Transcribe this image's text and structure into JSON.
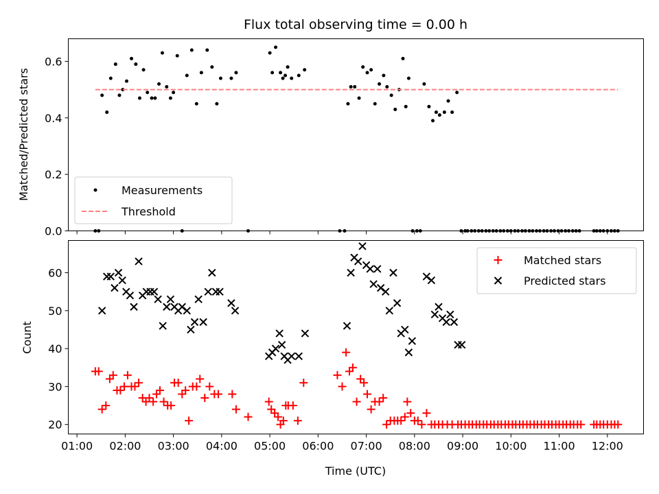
{
  "chart_data": [
    {
      "type": "scatter",
      "title": "Flux total observing time = 0.00 h",
      "xlabel": "",
      "ylabel": "Matched/Predicted stars",
      "xlim": [
        0.82,
        12.75
      ],
      "ylim": [
        0.0,
        0.68
      ],
      "yticks": [
        0.0,
        0.2,
        0.4,
        0.6
      ],
      "ytick_labels": [
        "0.0",
        "0.2",
        "0.4",
        "0.6"
      ],
      "legend_position": "bottom-left",
      "series": [
        {
          "name": "Measurements",
          "kind": "scatter",
          "color": "#000000",
          "x": [
            1.38,
            1.45,
            1.52,
            1.62,
            1.7,
            1.8,
            1.88,
            1.95,
            2.03,
            2.13,
            2.22,
            2.3,
            2.38,
            2.46,
            2.55,
            2.62,
            2.7,
            2.77,
            2.86,
            2.94,
            3.0,
            3.08,
            3.18,
            3.28,
            3.38,
            3.48,
            3.58,
            3.7,
            3.8,
            3.9,
            3.98,
            4.2,
            4.3,
            4.55,
            5.0,
            5.05,
            5.12,
            5.22,
            5.27,
            5.32,
            5.37,
            5.45,
            5.6,
            5.72,
            6.45,
            6.55,
            6.62,
            6.68,
            6.76,
            6.85,
            6.93,
            7.02,
            7.1,
            7.18,
            7.27,
            7.36,
            7.43,
            7.52,
            7.6,
            7.68,
            7.76,
            7.82,
            7.88,
            7.96,
            8.05,
            8.12,
            8.2,
            8.3,
            8.38,
            8.45,
            8.52,
            8.62,
            8.7,
            8.78,
            8.88,
            8.97,
            9.05,
            9.1,
            9.18,
            9.25,
            9.33,
            9.4,
            9.48,
            9.55,
            9.63,
            9.7,
            9.78,
            9.85,
            9.93,
            10.0,
            10.08,
            10.15,
            10.23,
            10.3,
            10.38,
            10.45,
            10.53,
            10.6,
            10.68,
            10.75,
            10.83,
            10.9,
            10.98,
            11.05,
            11.13,
            11.2,
            11.28,
            11.35,
            11.42,
            11.72,
            11.78,
            11.85,
            11.92,
            12.0,
            12.08,
            12.15,
            12.22
          ],
          "y": [
            0.0,
            0.0,
            0.48,
            0.42,
            0.54,
            0.59,
            0.48,
            0.5,
            0.53,
            0.61,
            0.59,
            0.47,
            0.57,
            0.49,
            0.47,
            0.47,
            0.52,
            0.63,
            0.51,
            0.47,
            0.49,
            0.62,
            0.0,
            0.55,
            0.64,
            0.45,
            0.56,
            0.64,
            0.58,
            0.45,
            0.54,
            0.54,
            0.56,
            0.0,
            0.63,
            0.56,
            0.65,
            0.56,
            0.54,
            0.55,
            0.58,
            0.54,
            0.55,
            0.57,
            0.0,
            0.0,
            0.45,
            0.51,
            0.51,
            0.47,
            0.58,
            0.56,
            0.57,
            0.45,
            0.52,
            0.55,
            0.51,
            0.48,
            0.43,
            0.5,
            0.61,
            0.44,
            0.54,
            0.0,
            0.0,
            0.0,
            0.52,
            0.44,
            0.39,
            0.42,
            0.41,
            0.42,
            0.46,
            0.42,
            0.49,
            0.0,
            0.0,
            0.0,
            0.0,
            0.0,
            0.0,
            0.0,
            0.0,
            0.0,
            0.0,
            0.0,
            0.0,
            0.0,
            0.0,
            0.0,
            0.0,
            0.0,
            0.0,
            0.0,
            0.0,
            0.0,
            0.0,
            0.0,
            0.0,
            0.0,
            0.0,
            0.0,
            0.0,
            0.0,
            0.0,
            0.0,
            0.0,
            0.0,
            0.0,
            0.0,
            0.0,
            0.0,
            0.0,
            0.0,
            0.0,
            0.0,
            0.0
          ]
        },
        {
          "name": "Threshold",
          "kind": "line",
          "color": "#ff8080",
          "style": "dashed",
          "x": [
            1.38,
            12.22
          ],
          "y": [
            0.5,
            0.5
          ]
        }
      ]
    },
    {
      "type": "scatter",
      "title": "",
      "xlabel": "Time (UTC)",
      "ylabel": "Count",
      "xlim": [
        0.82,
        12.75
      ],
      "ylim": [
        17.5,
        68.5
      ],
      "yticks": [
        20,
        30,
        40,
        50,
        60
      ],
      "ytick_labels": [
        "20",
        "30",
        "40",
        "50",
        "60"
      ],
      "xticks": [
        1,
        2,
        3,
        4,
        5,
        6,
        7,
        8,
        9,
        10,
        11,
        12
      ],
      "xtick_labels": [
        "01:00",
        "02:00",
        "03:00",
        "04:00",
        "05:00",
        "06:00",
        "07:00",
        "08:00",
        "09:00",
        "10:00",
        "11:00",
        "12:00"
      ],
      "legend_position": "top-right",
      "series": [
        {
          "name": "Matched stars",
          "marker": "plus",
          "color": "#ff0000",
          "x": [
            1.38,
            1.45,
            1.52,
            1.6,
            1.68,
            1.75,
            1.83,
            1.9,
            1.98,
            2.05,
            2.13,
            2.2,
            2.28,
            2.36,
            2.43,
            2.5,
            2.58,
            2.65,
            2.72,
            2.8,
            2.88,
            2.95,
            3.02,
            3.1,
            3.18,
            3.25,
            3.32,
            3.4,
            3.48,
            3.55,
            3.65,
            3.75,
            3.85,
            3.93,
            4.22,
            4.3,
            4.55,
            4.98,
            5.03,
            5.1,
            5.17,
            5.22,
            5.28,
            5.33,
            5.38,
            5.48,
            5.58,
            5.7,
            6.4,
            6.5,
            6.58,
            6.65,
            6.72,
            6.8,
            6.88,
            6.95,
            7.02,
            7.1,
            7.18,
            7.27,
            7.35,
            7.42,
            7.5,
            7.58,
            7.65,
            7.72,
            7.8,
            7.85,
            7.92,
            8.0,
            8.07,
            8.15,
            8.25,
            8.35,
            8.42,
            8.5,
            8.58,
            8.68,
            8.78,
            8.9,
            8.97,
            9.05,
            9.13,
            9.2,
            9.28,
            9.35,
            9.43,
            9.5,
            9.58,
            9.65,
            9.73,
            9.8,
            9.88,
            9.95,
            10.03,
            10.1,
            10.18,
            10.25,
            10.33,
            10.4,
            10.48,
            10.55,
            10.63,
            10.7,
            10.78,
            10.85,
            10.93,
            11.0,
            11.08,
            11.15,
            11.23,
            11.3,
            11.38,
            11.45,
            11.72,
            11.78,
            11.85,
            11.92,
            12.0,
            12.08,
            12.15,
            12.22
          ],
          "y": [
            34,
            34,
            24,
            25,
            32,
            33,
            29,
            29,
            30,
            33,
            30,
            30,
            31,
            27,
            26,
            27,
            26,
            28,
            29,
            26,
            25,
            25,
            31,
            31,
            28,
            29,
            21,
            30,
            30,
            32,
            27,
            30,
            28,
            28,
            28,
            24,
            22,
            26,
            24,
            23,
            22,
            20,
            21,
            25,
            25,
            25,
            21,
            31,
            33,
            30,
            39,
            34,
            35,
            26,
            32,
            31,
            28,
            24,
            26,
            26,
            27,
            20,
            21,
            21,
            21,
            21,
            22,
            26,
            23,
            21,
            21,
            20,
            23,
            20,
            20,
            20,
            20,
            20,
            20,
            20,
            20,
            20,
            20,
            20,
            20,
            20,
            20,
            20,
            20,
            20,
            20,
            20,
            20,
            20,
            20,
            20,
            20,
            20,
            20,
            20,
            20,
            20,
            20,
            20,
            20,
            20,
            20,
            20,
            20,
            20,
            20,
            20,
            20,
            20,
            20,
            20,
            20,
            20,
            20,
            20,
            20,
            20
          ]
        },
        {
          "name": "Predicted stars",
          "marker": "x",
          "color": "#000000",
          "x": [
            1.52,
            1.62,
            1.7,
            1.78,
            1.86,
            1.94,
            2.02,
            2.1,
            2.18,
            2.28,
            2.36,
            2.44,
            2.52,
            2.6,
            2.68,
            2.78,
            2.86,
            2.94,
            3.02,
            3.1,
            3.18,
            3.28,
            3.36,
            3.44,
            3.52,
            3.62,
            3.72,
            3.8,
            3.88,
            3.96,
            4.2,
            4.28,
            4.98,
            5.05,
            5.12,
            5.2,
            5.25,
            5.3,
            5.37,
            5.45,
            5.6,
            5.73,
            6.6,
            6.68,
            6.75,
            6.83,
            6.92,
            7.0,
            7.08,
            7.15,
            7.23,
            7.3,
            7.4,
            7.48,
            7.56,
            7.64,
            7.72,
            7.8,
            7.88,
            7.95,
            8.25,
            8.35,
            8.42,
            8.5,
            8.58,
            8.66,
            8.74,
            8.82,
            8.9,
            8.98
          ],
          "y": [
            50,
            59,
            59,
            56,
            60,
            58,
            55,
            54,
            51,
            63,
            54,
            55,
            55,
            55,
            53,
            46,
            51,
            53,
            51,
            50,
            51,
            50,
            45,
            47,
            53,
            47,
            55,
            60,
            55,
            55,
            52,
            50,
            38,
            39,
            40,
            44,
            41,
            38,
            37,
            38,
            38,
            44,
            46,
            60,
            64,
            63,
            67,
            62,
            61,
            57,
            61,
            56,
            55,
            50,
            60,
            52,
            44,
            45,
            39,
            42,
            59,
            58,
            49,
            51,
            48,
            47,
            49,
            47,
            41,
            41
          ]
        }
      ]
    }
  ]
}
